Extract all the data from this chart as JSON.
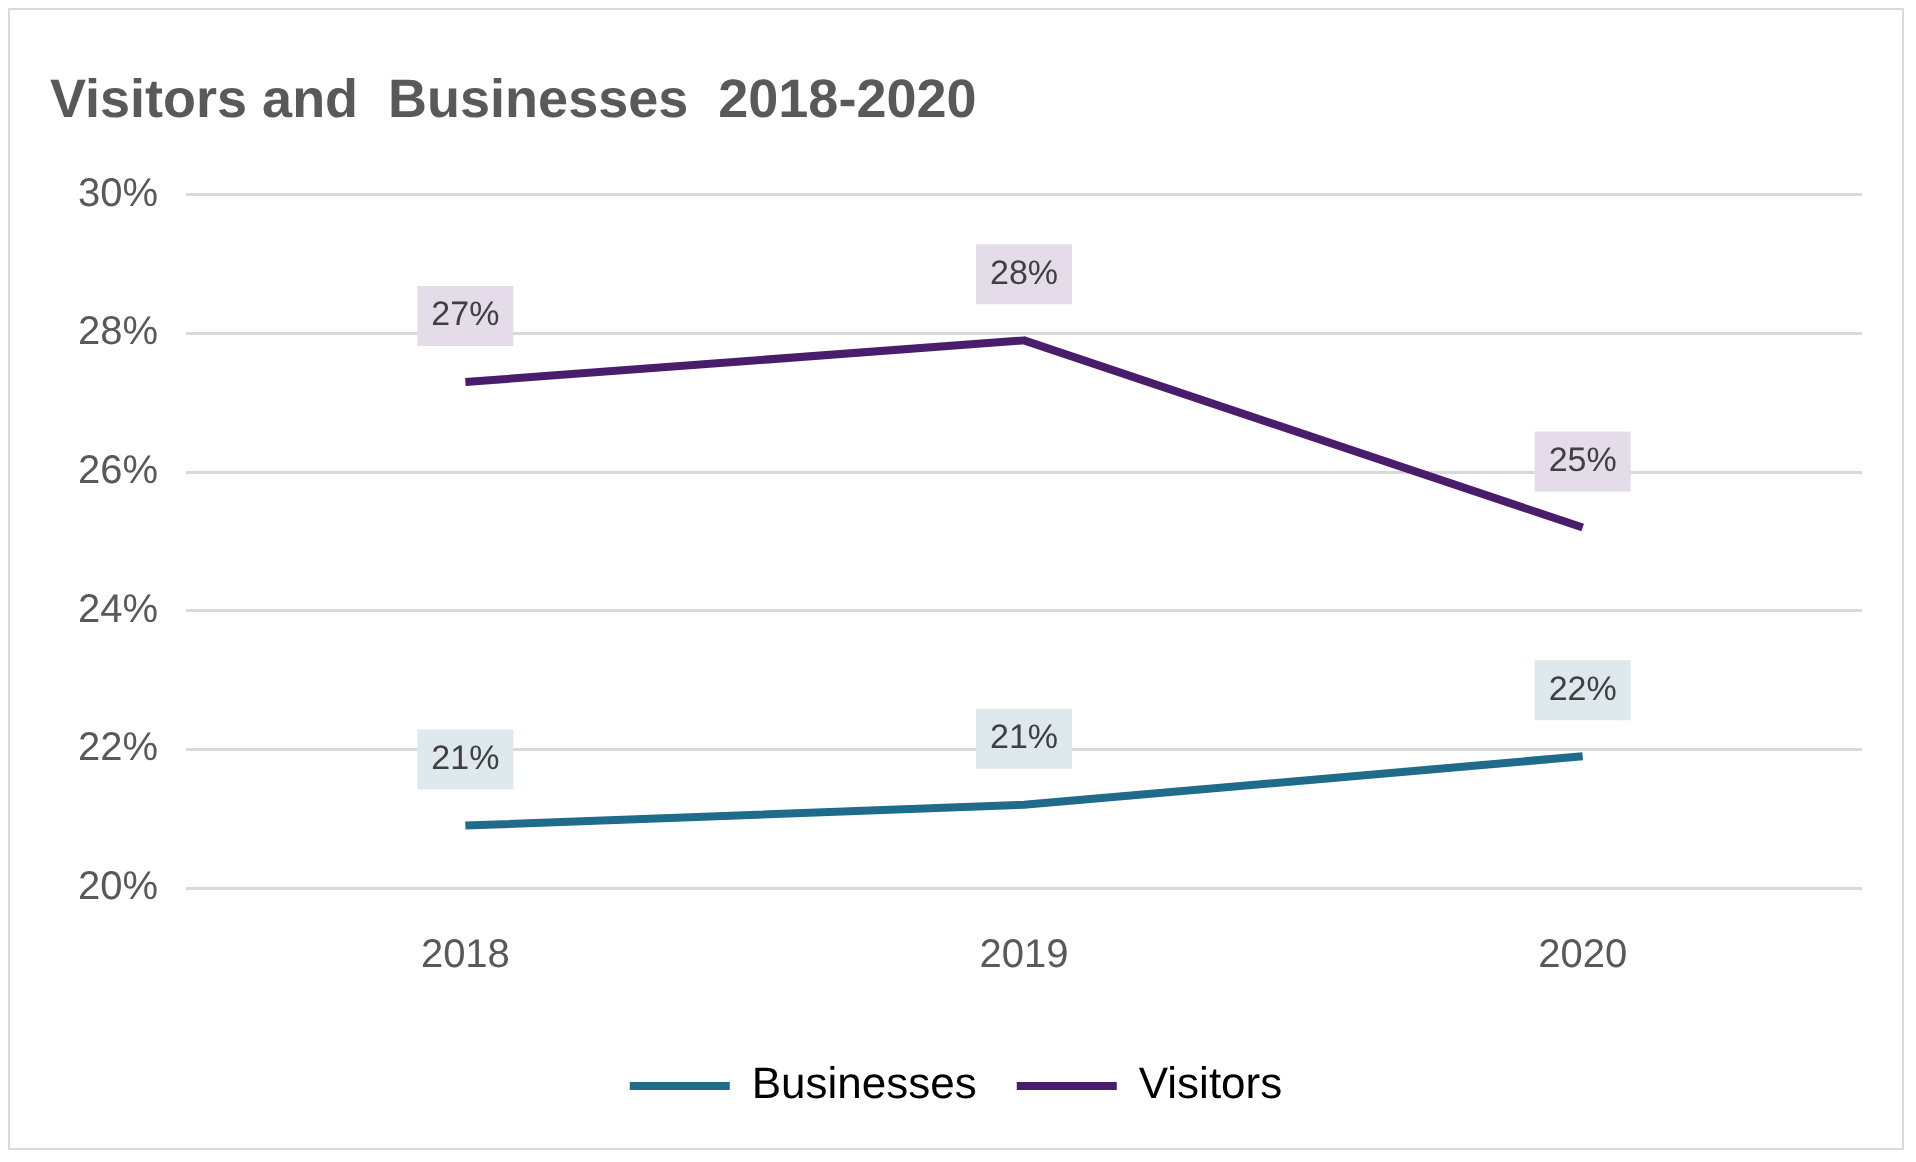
{
  "chart_data": {
    "type": "line",
    "title": "Visitors and  Businesses  2018-2020",
    "categories": [
      "2018",
      "2019",
      "2020"
    ],
    "series": [
      {
        "name": "Businesses",
        "color": "#1f6b8a",
        "values": [
          20.9,
          21.2,
          21.9
        ],
        "value_labels": [
          "21%",
          "21%",
          "22%"
        ]
      },
      {
        "name": "Visitors",
        "color": "#4a1c6c",
        "values": [
          27.3,
          27.9,
          25.2
        ],
        "value_labels": [
          "27%",
          "28%",
          "25%"
        ]
      }
    ],
    "ylim": [
      20,
      30
    ],
    "yticks": [
      {
        "value": 20,
        "label": "20%"
      },
      {
        "value": 22,
        "label": "22%"
      },
      {
        "value": 24,
        "label": "24%"
      },
      {
        "value": 26,
        "label": "26%"
      },
      {
        "value": 28,
        "label": "28%"
      },
      {
        "value": 30,
        "label": "30%"
      }
    ],
    "grid": "y",
    "legend": "bottom",
    "marker": "none",
    "line_style": "solid"
  }
}
